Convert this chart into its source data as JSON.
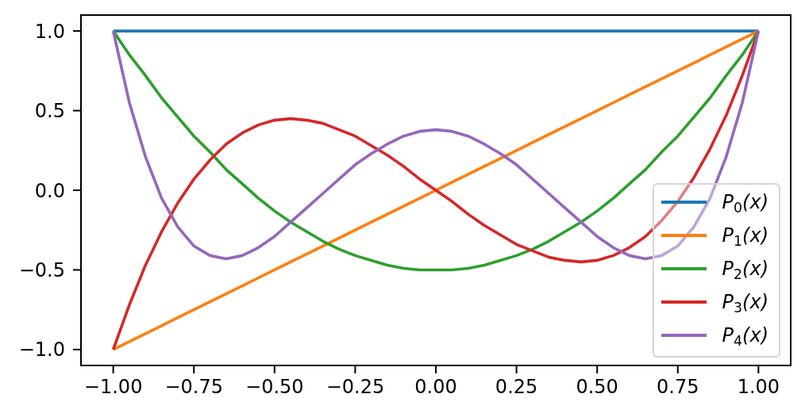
{
  "chart_data": {
    "type": "line",
    "x": [
      -1,
      -0.95,
      -0.9,
      -0.85,
      -0.8,
      -0.75,
      -0.7,
      -0.65,
      -0.6,
      -0.55,
      -0.5,
      -0.45,
      -0.4,
      -0.35,
      -0.3,
      -0.25,
      -0.2,
      -0.15,
      -0.1,
      -0.05,
      0,
      0.05,
      0.1,
      0.15,
      0.2,
      0.25,
      0.3,
      0.35,
      0.4,
      0.45,
      0.5,
      0.55,
      0.6,
      0.65,
      0.7,
      0.75,
      0.8,
      0.85,
      0.9,
      0.95,
      1
    ],
    "xlim": [
      -1.1,
      1.1
    ],
    "ylim": [
      -1.1,
      1.1
    ],
    "xticks": [
      {
        "value": -1,
        "label": "−1.00"
      },
      {
        "value": -0.75,
        "label": "−0.75"
      },
      {
        "value": -0.5,
        "label": "−0.50"
      },
      {
        "value": -0.25,
        "label": "−0.25"
      },
      {
        "value": 0,
        "label": "0.00"
      },
      0.25,
      {
        "value": 0.5,
        "label": "0.50"
      },
      0.75,
      {
        "value": 1,
        "label": "1.00"
      }
    ],
    "yticks": [
      {
        "value": -1,
        "label": "−1.0"
      },
      {
        "value": -0.5,
        "label": "−0.5"
      },
      {
        "value": 0,
        "label": "0.0"
      },
      0.5,
      {
        "value": 1,
        "label": "1.0"
      }
    ],
    "legend": "bottom right",
    "line_style": "solid",
    "series": [
      {
        "name": "P$_{0}$(x)",
        "color": "#1f77b4",
        "values": [
          1,
          1,
          1,
          1,
          1,
          1,
          1,
          1,
          1,
          1,
          1,
          1,
          1,
          1,
          1,
          1,
          1,
          1,
          1,
          1,
          1,
          1,
          1,
          1,
          1,
          1,
          1,
          1,
          1,
          1,
          1,
          1,
          1,
          1,
          1,
          1,
          1,
          1,
          1,
          1,
          1
        ]
      },
      {
        "name": "P$_{1}$(x)",
        "color": "#ff7f0e",
        "values": [
          -1,
          -0.95,
          -0.9,
          -0.85,
          -0.8,
          -0.75,
          -0.7,
          -0.65,
          -0.6,
          -0.55,
          -0.5,
          -0.45,
          -0.4,
          -0.35,
          -0.3,
          -0.25,
          -0.2,
          -0.15,
          -0.1,
          -0.05,
          0,
          0.05,
          0.1,
          0.15,
          0.2,
          0.25,
          0.3,
          0.35,
          0.4,
          0.45,
          0.5,
          0.55,
          0.6,
          0.65,
          0.7,
          0.75,
          0.8,
          0.85,
          0.9,
          0.95,
          1
        ]
      },
      {
        "name": "P$_{2}$(x)",
        "color": "#2ca02c",
        "values": [
          1,
          0.85,
          0.72,
          0.58,
          0.46,
          0.34,
          0.24,
          0.13,
          0.04,
          -0.05,
          -0.13,
          -0.2,
          -0.26,
          -0.32,
          -0.37,
          -0.41,
          -0.44,
          -0.47,
          -0.49,
          -0.5,
          -0.5,
          -0.5,
          -0.49,
          -0.47,
          -0.44,
          -0.41,
          -0.37,
          -0.32,
          -0.26,
          -0.2,
          -0.13,
          -0.05,
          0.04,
          0.13,
          0.24,
          0.34,
          0.46,
          0.58,
          0.72,
          0.85,
          1
        ]
      },
      {
        "name": "P$_{3}$(x)",
        "color": "#d62728",
        "values": [
          -1,
          -0.72,
          -0.47,
          -0.26,
          -0.08,
          0.07,
          0.19,
          0.29,
          0.36,
          0.41,
          0.44,
          0.45,
          0.44,
          0.42,
          0.38,
          0.34,
          0.28,
          0.22,
          0.15,
          0.07,
          0,
          -0.07,
          -0.15,
          -0.22,
          -0.28,
          -0.34,
          -0.38,
          -0.42,
          -0.44,
          -0.45,
          -0.44,
          -0.41,
          -0.36,
          -0.29,
          -0.19,
          -0.07,
          0.08,
          0.26,
          0.47,
          0.72,
          1
        ]
      },
      {
        "name": "P$_{4}$(x)",
        "color": "#9467bd",
        "values": [
          1,
          0.55,
          0.21,
          -0.05,
          -0.23,
          -0.35,
          -0.41,
          -0.43,
          -0.41,
          -0.36,
          -0.29,
          -0.2,
          -0.11,
          -0.02,
          0.07,
          0.16,
          0.23,
          0.29,
          0.34,
          0.37,
          0.38,
          0.37,
          0.34,
          0.29,
          0.23,
          0.16,
          0.07,
          -0.02,
          -0.11,
          -0.2,
          -0.29,
          -0.36,
          -0.41,
          -0.43,
          -0.41,
          -0.35,
          -0.23,
          -0.05,
          0.21,
          0.55,
          1
        ]
      }
    ]
  }
}
